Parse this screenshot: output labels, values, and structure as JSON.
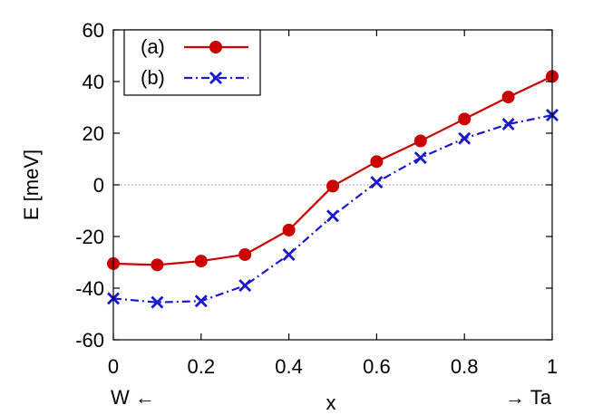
{
  "chart_data": {
    "type": "line",
    "xlabel": "x",
    "ylabel": "E [meV]",
    "xlim": [
      0,
      1
    ],
    "ylim": [
      -60,
      60
    ],
    "xticks": [
      "0",
      "0.2",
      "0.4",
      "0.6",
      "0.8",
      "1"
    ],
    "yticks": [
      "-60",
      "-40",
      "-20",
      "0",
      "20",
      "40",
      "60"
    ],
    "annotations": {
      "left": "W ←",
      "right": "→ Ta"
    },
    "zero_line": true,
    "legend_position": "top-left",
    "x": [
      0,
      0.1,
      0.2,
      0.3,
      0.4,
      0.5,
      0.6,
      0.7,
      0.8,
      0.9,
      1.0
    ],
    "series": [
      {
        "name": "(a)",
        "color": "#cc0000",
        "marker": "circle",
        "line": "solid",
        "values": [
          -30.5,
          -31,
          -29.5,
          -27,
          -17.5,
          -0.5,
          9,
          17,
          25.5,
          34,
          42
        ]
      },
      {
        "name": "(b)",
        "color": "#1a1acc",
        "marker": "x",
        "line": "dash-dot",
        "values": [
          -44,
          -45.5,
          -45,
          -39,
          -27,
          -12,
          1,
          10.5,
          18,
          23.5,
          27
        ]
      }
    ]
  }
}
